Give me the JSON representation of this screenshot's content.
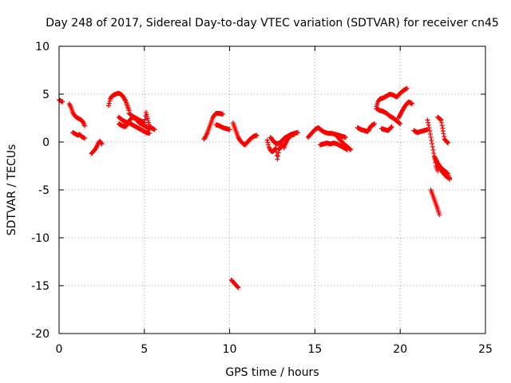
{
  "chart_data": {
    "type": "scatter",
    "title": "Day 248 of 2017, Sidereal Day-to-day VTEC variation (SDTVAR) for receiver cn45",
    "xlabel": "GPS time / hours",
    "ylabel": "SDTVAR / TECUs",
    "xlim": [
      0,
      25
    ],
    "ylim": [
      -20,
      10
    ],
    "xticks": [
      0,
      5,
      10,
      15,
      20,
      25
    ],
    "yticks": [
      -20,
      -15,
      -10,
      -5,
      0,
      5,
      10
    ],
    "grid": true,
    "marker": "plus",
    "color": "#ff0000",
    "series": [
      {
        "name": "SDTVAR",
        "x": [],
        "y": []
      }
    ],
    "segments": [
      {
        "x": [
          0.0,
          0.1,
          0.2
        ],
        "y": [
          4.4,
          4.3,
          4.2
        ]
      },
      {
        "x": [
          0.6,
          0.7,
          0.8,
          0.9,
          1.0,
          1.1,
          1.2,
          1.3,
          1.4,
          1.5
        ],
        "y": [
          4.0,
          3.6,
          3.1,
          2.8,
          2.6,
          2.5,
          2.4,
          2.3,
          2.1,
          1.7
        ]
      },
      {
        "x": [
          0.8,
          0.9,
          1.0,
          1.1,
          1.2,
          1.3,
          1.4,
          1.5
        ],
        "y": [
          1.0,
          0.9,
          0.8,
          0.7,
          0.8,
          0.6,
          0.5,
          0.4
        ]
      },
      {
        "x": [
          1.9,
          2.0,
          2.1,
          2.2,
          2.3,
          2.4,
          2.5
        ],
        "y": [
          -1.2,
          -1.0,
          -0.8,
          -0.5,
          -0.1,
          0.1,
          -0.2
        ]
      },
      {
        "x": [
          2.9,
          3.0,
          3.1,
          3.3,
          3.5,
          3.7,
          3.8,
          3.9,
          4.0,
          4.1
        ],
        "y": [
          3.8,
          4.5,
          4.8,
          5.0,
          5.1,
          4.9,
          4.6,
          4.3,
          3.8,
          3.3
        ]
      },
      {
        "x": [
          3.5,
          3.7,
          3.9,
          4.1,
          4.3,
          4.5,
          4.7,
          4.9,
          5.1,
          5.3
        ],
        "y": [
          2.6,
          2.3,
          2.1,
          2.0,
          1.8,
          1.6,
          1.4,
          1.2,
          1.0,
          0.9
        ]
      },
      {
        "x": [
          3.5,
          3.7,
          3.9,
          4.1,
          4.3,
          4.5,
          4.7,
          4.9,
          5.1,
          5.3
        ],
        "y": [
          1.9,
          1.7,
          1.6,
          2.2,
          2.6,
          2.4,
          2.0,
          1.8,
          1.6,
          1.3
        ]
      },
      {
        "x": [
          4.1,
          4.3,
          4.5,
          4.7,
          4.9,
          5.0,
          5.1,
          5.3,
          5.6
        ],
        "y": [
          3.0,
          2.7,
          2.5,
          2.3,
          2.1,
          2.0,
          3.1,
          1.6,
          1.3
        ]
      },
      {
        "x": [
          8.5,
          8.6,
          8.7,
          8.8,
          8.9,
          9.0,
          9.1,
          9.2,
          9.4,
          9.6
        ],
        "y": [
          0.3,
          0.6,
          1.0,
          1.5,
          2.0,
          2.5,
          2.8,
          3.0,
          3.0,
          2.9
        ]
      },
      {
        "x": [
          9.2,
          9.4,
          9.6,
          9.8,
          10.0
        ],
        "y": [
          1.8,
          1.7,
          1.5,
          1.4,
          1.3
        ]
      },
      {
        "x": [
          10.1,
          10.2,
          10.3,
          10.4,
          10.5
        ],
        "y": [
          -14.4,
          -14.6,
          -14.8,
          -15.0,
          -15.2
        ]
      },
      {
        "x": [
          10.2,
          10.3,
          10.4,
          10.5,
          10.6,
          10.7,
          10.8,
          10.9,
          11.0,
          11.2,
          11.4,
          11.6
        ],
        "y": [
          2.0,
          1.5,
          1.0,
          0.5,
          0.2,
          0.0,
          -0.2,
          -0.3,
          -0.1,
          0.3,
          0.6,
          0.7
        ]
      },
      {
        "x": [
          12.2,
          12.3,
          12.4,
          12.5,
          12.6,
          12.7,
          12.8,
          12.9,
          13.0,
          13.1,
          13.2
        ],
        "y": [
          0.2,
          -0.5,
          -0.9,
          -1.0,
          -0.9,
          -0.6,
          -1.8,
          -0.8,
          -0.5,
          -0.3,
          -0.6
        ]
      },
      {
        "x": [
          12.4,
          12.6,
          12.8,
          13.0,
          13.2,
          13.4,
          13.6,
          13.8,
          14.0
        ],
        "y": [
          0.5,
          0.0,
          -0.2,
          0.0,
          0.4,
          0.6,
          0.8,
          0.9,
          1.0
        ]
      },
      {
        "x": [
          13.2,
          13.4,
          13.6,
          13.8
        ],
        "y": [
          -0.4,
          0.3,
          0.7,
          0.8
        ]
      },
      {
        "x": [
          14.6,
          14.8,
          15.0,
          15.2,
          15.4,
          15.6,
          15.8,
          16.0,
          16.2,
          16.4,
          16.6,
          16.8
        ],
        "y": [
          0.5,
          0.9,
          1.3,
          1.5,
          1.2,
          1.0,
          0.9,
          0.9,
          0.8,
          0.7,
          0.6,
          0.5
        ]
      },
      {
        "x": [
          15.3,
          15.5,
          15.7,
          15.9,
          16.1,
          16.3,
          16.5,
          16.7,
          16.9
        ],
        "y": [
          -0.3,
          -0.2,
          -0.1,
          -0.2,
          -0.1,
          -0.2,
          -0.4,
          -0.6,
          -0.8
        ]
      },
      {
        "x": [
          16.3,
          16.5,
          16.7,
          16.9,
          17.1
        ],
        "y": [
          0.6,
          0.2,
          -0.2,
          -0.5,
          -0.8
        ]
      },
      {
        "x": [
          17.5,
          17.7,
          17.9,
          18.1,
          18.3,
          18.5
        ],
        "y": [
          1.5,
          1.3,
          1.2,
          1.1,
          1.7,
          1.9
        ]
      },
      {
        "x": [
          18.6,
          18.7,
          18.8,
          19.0,
          19.2,
          19.4,
          19.6,
          19.8,
          20.0,
          20.2,
          20.4
        ],
        "y": [
          3.7,
          4.2,
          4.5,
          4.6,
          4.8,
          5.0,
          4.9,
          4.7,
          5.1,
          5.4,
          5.6
        ]
      },
      {
        "x": [
          18.6,
          18.8,
          19.0,
          19.2,
          19.4,
          19.6,
          19.8,
          20.0
        ],
        "y": [
          3.5,
          3.3,
          3.2,
          3.0,
          2.7,
          2.5,
          2.2,
          1.9
        ]
      },
      {
        "x": [
          18.9,
          19.1,
          19.3,
          19.5
        ],
        "y": [
          1.4,
          1.3,
          1.2,
          1.6
        ]
      },
      {
        "x": [
          19.9,
          20.1,
          20.3,
          20.5,
          20.7
        ],
        "y": [
          2.5,
          3.2,
          3.8,
          4.2,
          4.0
        ]
      },
      {
        "x": [
          20.8,
          21.0,
          21.2,
          21.4,
          21.6
        ],
        "y": [
          1.2,
          1.0,
          1.1,
          1.2,
          1.3
        ]
      },
      {
        "x": [
          21.6,
          21.7,
          21.8,
          21.9,
          22.0,
          22.1,
          22.2
        ],
        "y": [
          2.3,
          1.5,
          0.5,
          -0.5,
          -1.5,
          -2.5,
          -3.0
        ]
      },
      {
        "x": [
          21.8,
          21.9,
          22.0,
          22.1,
          22.2,
          22.3
        ],
        "y": [
          -5.0,
          -5.5,
          -6.0,
          -6.5,
          -7.0,
          -7.6
        ]
      },
      {
        "x": [
          22.1,
          22.3,
          22.5,
          22.7,
          22.9
        ],
        "y": [
          -2.0,
          -2.6,
          -3.2,
          -3.6,
          -3.8
        ]
      },
      {
        "x": [
          22.2,
          22.4,
          22.6,
          22.8
        ],
        "y": [
          2.6,
          2.3,
          0.3,
          -0.1
        ]
      },
      {
        "x": [
          22.0,
          22.2,
          22.4,
          22.6,
          22.8,
          22.9
        ],
        "y": [
          -1.5,
          -2.2,
          -2.7,
          -3.0,
          -3.3,
          -3.9
        ]
      }
    ]
  }
}
